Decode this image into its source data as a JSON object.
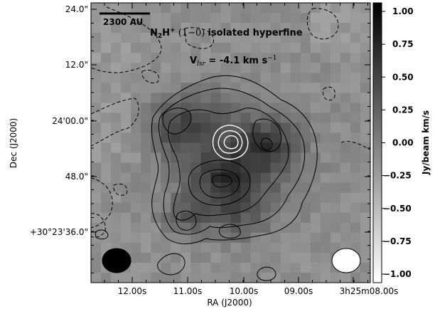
{
  "chart_data": {
    "type": "heatmap",
    "xlabel": "RA (J2000)",
    "ylabel": "Dec (J2000)",
    "x_ticks": [
      "12.00s",
      "11.00s",
      "10.00s",
      "09.00s",
      "3h25m08.00s"
    ],
    "y_ticks": [
      "24.0\"",
      "12.0\"",
      "24'00.0\"",
      "48.0\"",
      "+30°23'36.0\""
    ],
    "colorbar": {
      "label": "Jy/beam km/s",
      "ticks": [
        "1.00",
        "0.75",
        "0.50",
        "0.25",
        "0.00",
        "−0.25",
        "−0.50",
        "−0.75",
        "−1.00"
      ],
      "range": [
        -1.0,
        1.0
      ],
      "colormap": "grayscale (black high, white low)"
    },
    "scalebar_label": "2300 AU",
    "title_parts": {
      "main": "N",
      "sub": "2",
      "mid": "H",
      "sup": "+",
      "rest1": " (1−0) ",
      "rest2": "isolated hyperfine"
    },
    "vlsr_parts": {
      "prefix": "V",
      "sub": "lsr",
      "mid": " = -4.1 km s",
      "sup": "−1"
    },
    "contour_colors": {
      "positive": "#000000",
      "negative_dashed": "#000000",
      "overlay": "#ffffff"
    },
    "beams": [
      {
        "position": "bottom-left",
        "fill": "#000000"
      },
      {
        "position": "bottom-right",
        "fill": "#ffffff"
      }
    ]
  }
}
